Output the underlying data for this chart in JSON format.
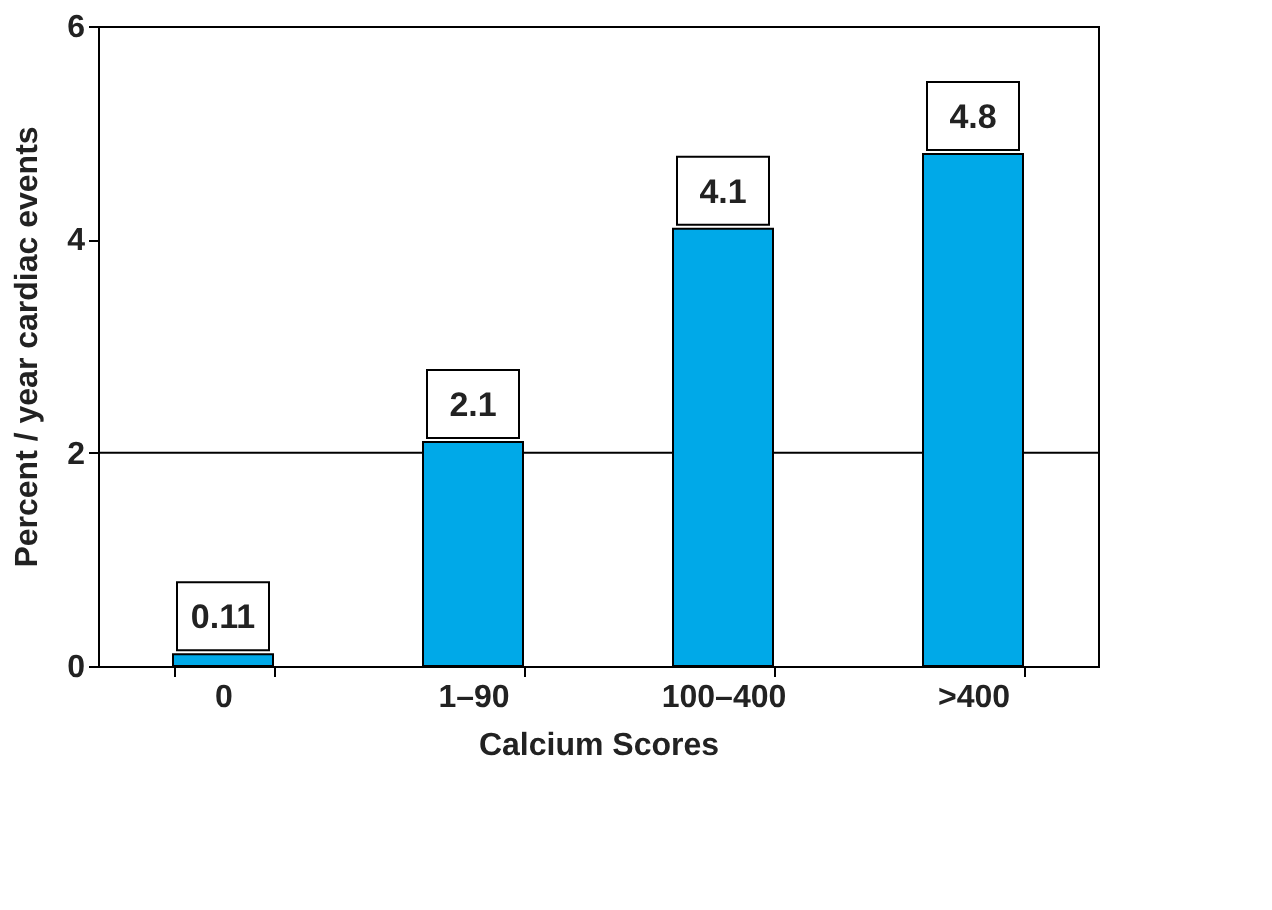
{
  "chart_data": {
    "type": "bar",
    "xlabel": "Calcium Scores",
    "ylabel": "Percent / year cardiac events",
    "categories": [
      "0",
      "1–90",
      "100–400",
      ">400"
    ],
    "values": [
      0.11,
      2.1,
      4.1,
      4.8
    ],
    "color": "#00a9e8",
    "ylim": [
      0,
      6
    ],
    "yticks": [
      0,
      2,
      4,
      6
    ],
    "grid": false,
    "data_labels": true,
    "ref_lines": [
      {
        "axis": "y",
        "value": 2,
        "color": "#000000"
      }
    ]
  }
}
